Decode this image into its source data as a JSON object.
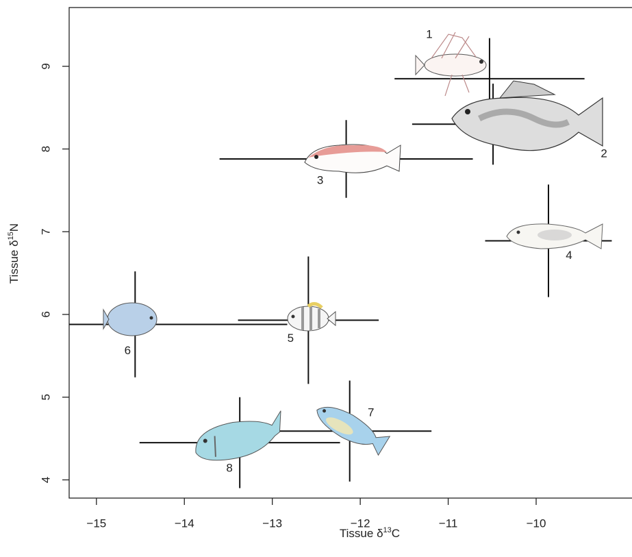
{
  "chart_data": {
    "type": "scatter",
    "xlabel": [
      "Tissue δ",
      "13",
      "C"
    ],
    "ylabel": [
      "Tissue δ",
      "15",
      "N"
    ],
    "labels": [
      "1",
      "2",
      "3",
      "4",
      "5",
      "6",
      "7",
      "8"
    ],
    "x": [
      -10.53,
      -10.49,
      -12.16,
      -9.86,
      -12.59,
      -14.56,
      -12.12,
      -13.37
    ],
    "xerr": [
      1.08,
      0.92,
      1.44,
      0.72,
      0.8,
      1.73,
      0.93,
      1.14
    ],
    "y": [
      8.85,
      8.3,
      7.88,
      6.89,
      5.93,
      5.88,
      4.59,
      4.45
    ],
    "yerr": [
      0.49,
      0.49,
      0.47,
      0.68,
      0.77,
      0.64,
      0.61,
      0.55
    ],
    "color": "#111111",
    "xlim": [
      -15.31,
      -8.91
    ],
    "ylim": [
      3.78,
      9.71
    ],
    "xticks": [
      {
        "value": -15,
        "label": "−15"
      },
      {
        "value": -14,
        "label": "−14"
      },
      {
        "value": -13,
        "label": "−13"
      },
      {
        "value": -12,
        "label": "−12"
      },
      {
        "value": -11,
        "label": "−11"
      },
      {
        "value": -10,
        "label": "−10"
      }
    ],
    "yticks": [
      4,
      5,
      6,
      7,
      8,
      9
    ]
  }
}
